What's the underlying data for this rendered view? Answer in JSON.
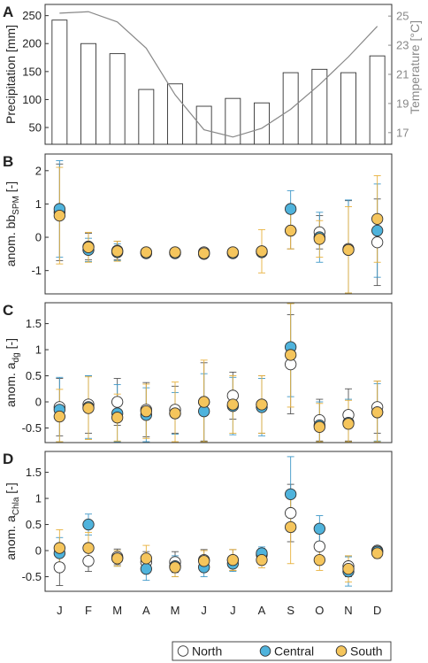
{
  "months": [
    "J",
    "F",
    "M",
    "A",
    "M",
    "J",
    "J",
    "A",
    "S",
    "O",
    "N",
    "D"
  ],
  "colors": {
    "north": "#ffffff",
    "central": "#4fb3dc",
    "south": "#f5c55c",
    "central_bar": "#3f98c8",
    "south_bar": "#e8b13c",
    "north_bar": "#555555",
    "temp_line": "#888888"
  },
  "legend": [
    {
      "key": "north",
      "label": "North"
    },
    {
      "key": "central",
      "label": "Central"
    },
    {
      "key": "south",
      "label": "South"
    }
  ],
  "chart_data": [
    {
      "type": "bar",
      "panel_label": "A",
      "ylabel": "Precipitation [mm]",
      "ylim": [
        20,
        270
      ],
      "yticks": [
        50,
        100,
        150,
        200,
        250
      ],
      "y2label": "Temperature [°C]",
      "y2lim": [
        16.2,
        25.8
      ],
      "y2ticks": [
        17,
        19,
        21,
        23,
        25
      ],
      "values": [
        242,
        200,
        182,
        118,
        128,
        88,
        102,
        94,
        148,
        154,
        148,
        178
      ],
      "temperature": [
        25.2,
        25.3,
        24.6,
        22.8,
        19.6,
        17.2,
        16.7,
        17.3,
        18.6,
        20.3,
        22.2,
        24.3
      ]
    },
    {
      "type": "scatter",
      "panel_label": "B",
      "ylabel_main": "anom. bb",
      "ylabel_sub": "SPM",
      "ylabel_tail": " [-]",
      "ylim": [
        -1.7,
        2.5
      ],
      "yticks": [
        -1,
        0,
        1,
        2
      ],
      "series": [
        {
          "key": "north",
          "values": [
            0.75,
            -0.28,
            -0.4,
            -0.45,
            -0.45,
            -0.45,
            -0.45,
            -0.42,
            0.2,
            0.15,
            -0.35,
            -0.15
          ],
          "err": [
            1.45,
            0.4,
            0.28,
            0.12,
            0.12,
            0.12,
            0.12,
            0.12,
            0.55,
            0.5,
            1.45,
            1.3
          ]
        },
        {
          "key": "central",
          "values": [
            0.85,
            -0.38,
            -0.45,
            -0.48,
            -0.48,
            -0.5,
            -0.48,
            -0.45,
            0.85,
            0.0,
            -0.38,
            0.2
          ],
          "err": [
            1.45,
            0.35,
            0.25,
            0.12,
            0.12,
            0.12,
            0.12,
            0.12,
            0.55,
            0.75,
            1.5,
            1.4
          ]
        },
        {
          "key": "south",
          "values": [
            0.65,
            -0.3,
            -0.42,
            -0.45,
            -0.45,
            -0.48,
            -0.45,
            -0.42,
            0.2,
            -0.05,
            -0.38,
            0.55
          ],
          "err": [
            1.45,
            0.45,
            0.3,
            0.12,
            0.12,
            0.15,
            0.12,
            0.65,
            0.55,
            0.55,
            1.3,
            1.3
          ]
        }
      ]
    },
    {
      "type": "scatter",
      "panel_label": "C",
      "ylabel_main": "anom. a",
      "ylabel_sub": "dg",
      "ylabel_tail": " [-]",
      "ylim": [
        -0.78,
        1.9
      ],
      "yticks": [
        -0.5,
        0,
        0.5,
        1,
        1.5
      ],
      "series": [
        {
          "key": "north",
          "values": [
            -0.1,
            -0.05,
            0.0,
            -0.15,
            -0.15,
            0.0,
            0.12,
            -0.05,
            0.72,
            -0.35,
            -0.25,
            -0.1
          ],
          "err": [
            0.55,
            0.55,
            0.45,
            0.52,
            0.45,
            0.75,
            0.45,
            0.55,
            0.95,
            0.4,
            0.5,
            0.5
          ]
        },
        {
          "key": "central",
          "values": [
            -0.15,
            -0.1,
            -0.22,
            -0.25,
            -0.22,
            -0.18,
            -0.08,
            -0.1,
            1.05,
            -0.45,
            -0.4,
            -0.2
          ],
          "err": [
            0.62,
            0.6,
            0.55,
            0.52,
            0.4,
            0.72,
            0.55,
            0.55,
            0.95,
            0.45,
            0.45,
            0.55
          ]
        },
        {
          "key": "south",
          "values": [
            -0.28,
            -0.12,
            -0.3,
            -0.18,
            -0.22,
            0.0,
            -0.05,
            -0.05,
            0.9,
            -0.48,
            -0.42,
            -0.2
          ],
          "err": [
            0.52,
            0.6,
            0.45,
            0.52,
            0.6,
            0.8,
            0.55,
            0.55,
            1.0,
            0.45,
            0.45,
            0.6
          ]
        }
      ]
    },
    {
      "type": "scatter",
      "panel_label": "D",
      "ylabel_main": "anom. a",
      "ylabel_sub": "Chla",
      "ylabel_tail": " [-]",
      "ylim": [
        -0.78,
        1.9
      ],
      "yticks": [
        -0.5,
        0,
        0.5,
        1,
        1.5
      ],
      "series": [
        {
          "key": "north",
          "values": [
            -0.32,
            -0.2,
            -0.12,
            -0.22,
            -0.22,
            -0.18,
            -0.18,
            -0.08,
            0.72,
            0.08,
            -0.3,
            0.0
          ],
          "err": [
            0.35,
            0.2,
            0.15,
            0.2,
            0.2,
            0.2,
            0.2,
            0.12,
            0.55,
            0.25,
            0.2,
            0.08
          ]
        },
        {
          "key": "central",
          "values": [
            -0.05,
            0.5,
            -0.15,
            -0.35,
            -0.3,
            -0.32,
            -0.25,
            -0.05,
            1.08,
            0.42,
            -0.4,
            -0.02
          ],
          "err": [
            0.3,
            0.2,
            0.15,
            0.22,
            0.2,
            0.18,
            0.15,
            0.12,
            0.72,
            0.25,
            0.28,
            0.08
          ]
        },
        {
          "key": "south",
          "values": [
            0.05,
            0.05,
            -0.15,
            -0.15,
            -0.32,
            -0.2,
            -0.18,
            -0.18,
            0.45,
            -0.18,
            -0.35,
            -0.05
          ],
          "err": [
            0.35,
            0.3,
            0.15,
            0.25,
            0.18,
            0.2,
            0.2,
            0.15,
            0.7,
            0.2,
            0.25,
            0.1
          ]
        }
      ]
    }
  ]
}
